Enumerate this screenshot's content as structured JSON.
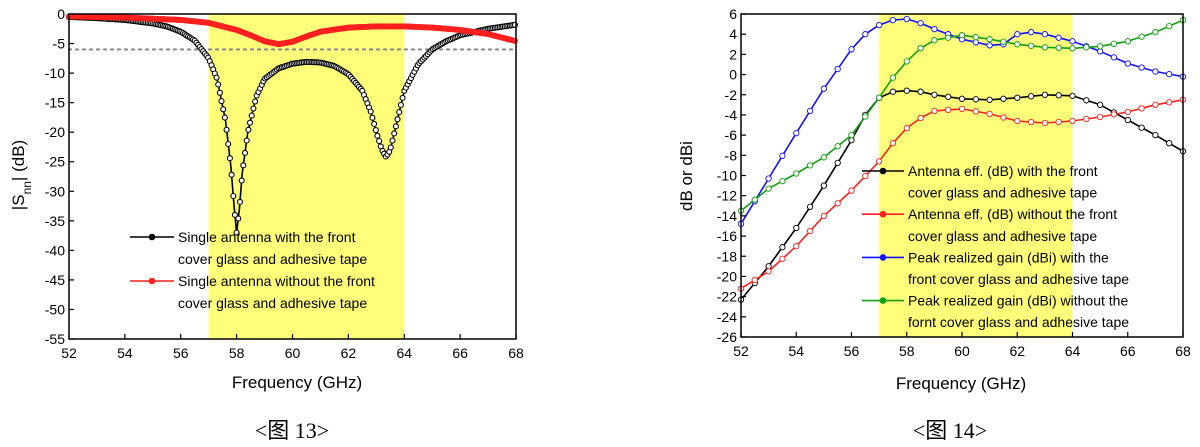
{
  "chart_data": [
    {
      "type": "line",
      "caption": "<图 13>",
      "xlabel": "Frequency (GHz)",
      "ylabel_parts": [
        "|S",
        "nn",
        "| (dB)"
      ],
      "xlim": [
        52,
        68
      ],
      "ylim": [
        -55,
        0
      ],
      "xticks": [
        "52",
        "54",
        "56",
        "58",
        "60",
        "62",
        "64",
        "66",
        "68"
      ],
      "yticks": [
        "0",
        "-5",
        "-10",
        "-15",
        "-20",
        "-25",
        "-30",
        "-35",
        "-40",
        "-45",
        "-50",
        "-55"
      ],
      "highlight_band": [
        57,
        64
      ],
      "reference_line": -6,
      "legend_position": "lower-center",
      "colors": {
        "band": "#ffff7a",
        "reference": "#8a8a8a"
      },
      "series": [
        {
          "name_lines": [
            "Single antenna with the front",
            "cover glass and adhesive tape"
          ],
          "color": "#000000",
          "x": [
            52,
            53,
            54,
            55,
            55.5,
            56,
            56.5,
            57,
            57.3,
            57.6,
            57.8,
            57.9,
            58,
            58.1,
            58.2,
            58.4,
            58.7,
            59,
            59.5,
            60,
            60.5,
            61,
            61.5,
            62,
            62.5,
            62.8,
            63,
            63.2,
            63.35,
            63.5,
            63.7,
            64,
            64.5,
            65,
            65.5,
            66,
            67,
            68
          ],
          "y": [
            -0.5,
            -0.7,
            -1.0,
            -1.6,
            -2.1,
            -3.0,
            -4.5,
            -7.5,
            -11,
            -18,
            -26,
            -32,
            -37,
            -33,
            -27,
            -20,
            -14,
            -11,
            -9.2,
            -8.4,
            -8.1,
            -8.2,
            -8.8,
            -10.2,
            -13,
            -16.5,
            -20,
            -23,
            -24.2,
            -23,
            -19,
            -13,
            -8.5,
            -6,
            -4.6,
            -3.6,
            -2.5,
            -1.8
          ]
        },
        {
          "name_lines": [
            "Single antenna without the front",
            "cover glass and adhesive tape"
          ],
          "color": "#ff2020",
          "x": [
            52,
            54,
            56,
            57,
            58,
            58.5,
            59,
            59.5,
            60,
            60.5,
            61,
            62,
            63,
            64,
            65,
            66,
            67,
            68
          ],
          "y": [
            -0.4,
            -0.6,
            -1.0,
            -1.5,
            -2.7,
            -3.6,
            -4.6,
            -5.1,
            -4.7,
            -3.8,
            -3.0,
            -2.3,
            -2.1,
            -2.1,
            -2.3,
            -2.7,
            -3.4,
            -4.6
          ]
        }
      ]
    },
    {
      "type": "line",
      "caption": "<图 14>",
      "xlabel": "Frequency (GHz)",
      "ylabel": "dB or dBi",
      "xlim": [
        52,
        68
      ],
      "ylim": [
        -26,
        6
      ],
      "xticks": [
        "52",
        "54",
        "56",
        "58",
        "60",
        "62",
        "64",
        "66",
        "68"
      ],
      "yticks": [
        "6",
        "4",
        "2",
        "0",
        "-2",
        "-4",
        "-6",
        "-8",
        "-10",
        "-12",
        "-14",
        "-16",
        "-18",
        "-20",
        "-22",
        "-24",
        "-26"
      ],
      "highlight_band": [
        57,
        64
      ],
      "legend_position": "right",
      "colors": {
        "band": "#ffff7a"
      },
      "series": [
        {
          "name_lines": [
            "Antenna eff. (dB) with the front",
            "cover glass and adhesive tape"
          ],
          "color": "#000000",
          "x": [
            52,
            53,
            54,
            55,
            56,
            56.5,
            57,
            57.5,
            58,
            58.5,
            59,
            60,
            61,
            62,
            63,
            64,
            65,
            66,
            67,
            68
          ],
          "y": [
            -22.3,
            -19,
            -15.2,
            -11,
            -6.5,
            -4,
            -2.3,
            -1.7,
            -1.6,
            -1.7,
            -2.0,
            -2.4,
            -2.5,
            -2.3,
            -2.0,
            -2.1,
            -3.0,
            -4.5,
            -6,
            -7.6
          ]
        },
        {
          "name_lines": [
            "Antenna eff. (dB) without the front",
            "cover glass and adhesive tape"
          ],
          "color": "#ff2020",
          "x": [
            52,
            53,
            54,
            55,
            56,
            57,
            57.5,
            58,
            58.5,
            59,
            60,
            61,
            62,
            63,
            64,
            65,
            66,
            67,
            68
          ],
          "y": [
            -21.2,
            -19.5,
            -17,
            -14,
            -11.5,
            -8.6,
            -6.8,
            -5.3,
            -4.3,
            -3.6,
            -3.4,
            -3.9,
            -4.6,
            -4.8,
            -4.6,
            -4.2,
            -3.7,
            -3.0,
            -2.5
          ]
        },
        {
          "name_lines": [
            "Peak realized gain (dBi) with the",
            "front cover glass and adhesive tape"
          ],
          "color": "#1010ff",
          "x": [
            52,
            53,
            54,
            55,
            56,
            56.5,
            57,
            57.5,
            58,
            58.5,
            59,
            60,
            61,
            61.5,
            62,
            62.5,
            63,
            64,
            65,
            66,
            67,
            68
          ],
          "y": [
            -14.8,
            -10.3,
            -5.8,
            -1.4,
            2.5,
            4,
            4.9,
            5.4,
            5.5,
            5.1,
            4.5,
            3.5,
            2.9,
            3.0,
            4.0,
            4.2,
            4.0,
            3.3,
            2.3,
            1.1,
            0.3,
            -0.2
          ]
        },
        {
          "name_lines": [
            "Peak realized gain (dBi) without the",
            "fornt cover glass and adhesive tape"
          ],
          "color": "#10a010",
          "x": [
            52,
            53,
            54,
            55,
            56,
            57,
            57.5,
            58,
            58.5,
            59,
            60,
            61,
            62,
            63,
            64,
            65,
            66,
            67,
            68
          ],
          "y": [
            -13.5,
            -11.3,
            -9.8,
            -8.2,
            -6,
            -2.3,
            -0.3,
            1.3,
            2.6,
            3.4,
            3.9,
            3.5,
            3.0,
            2.7,
            2.6,
            2.8,
            3.3,
            4.2,
            5.4
          ]
        }
      ]
    }
  ]
}
